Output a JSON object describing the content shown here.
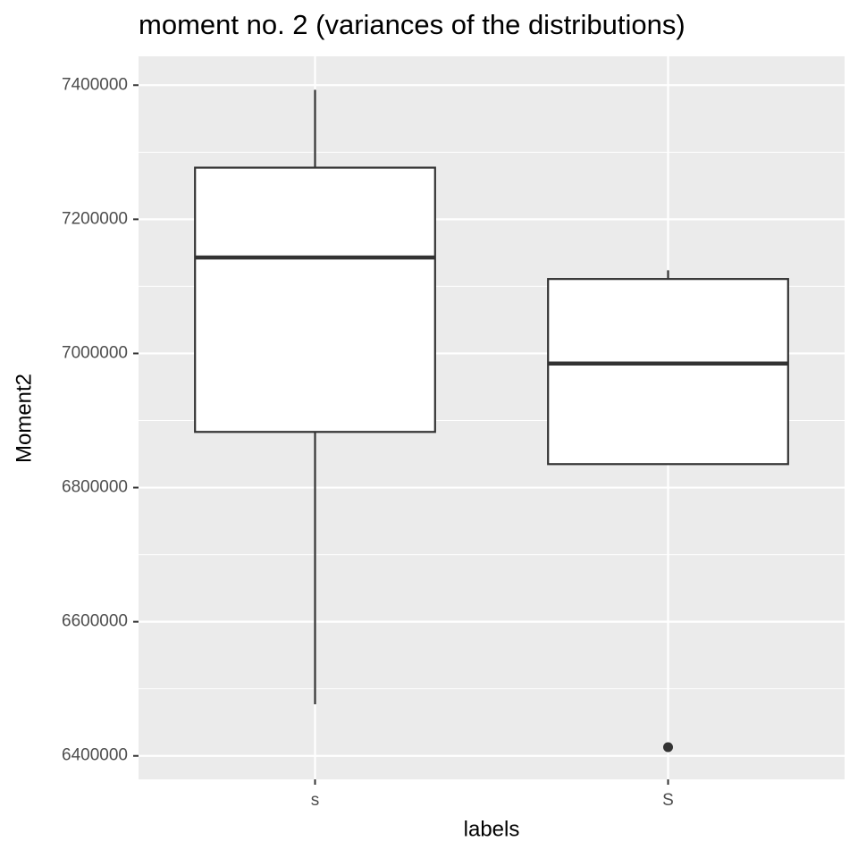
{
  "chart_data": {
    "type": "box",
    "title": "moment no. 2 (variances of the distributions)",
    "x_label": "labels",
    "y_label": "Moment2",
    "categories": [
      "s",
      "S"
    ],
    "boxes": [
      {
        "whisker_low": 6477000,
        "q1": 6883000,
        "median": 7143000,
        "q3": 7277000,
        "whisker_high": 7393000,
        "outliers": []
      },
      {
        "whisker_low": 6835000,
        "q1": 6835000,
        "median": 6985000,
        "q3": 7111000,
        "whisker_high": 7124000,
        "outliers": [
          6413000
        ]
      }
    ],
    "ylim": [
      6365000,
      7443000
    ],
    "yticks": [
      6400000,
      6600000,
      6800000,
      7000000,
      7200000,
      7400000
    ],
    "grid": true
  }
}
